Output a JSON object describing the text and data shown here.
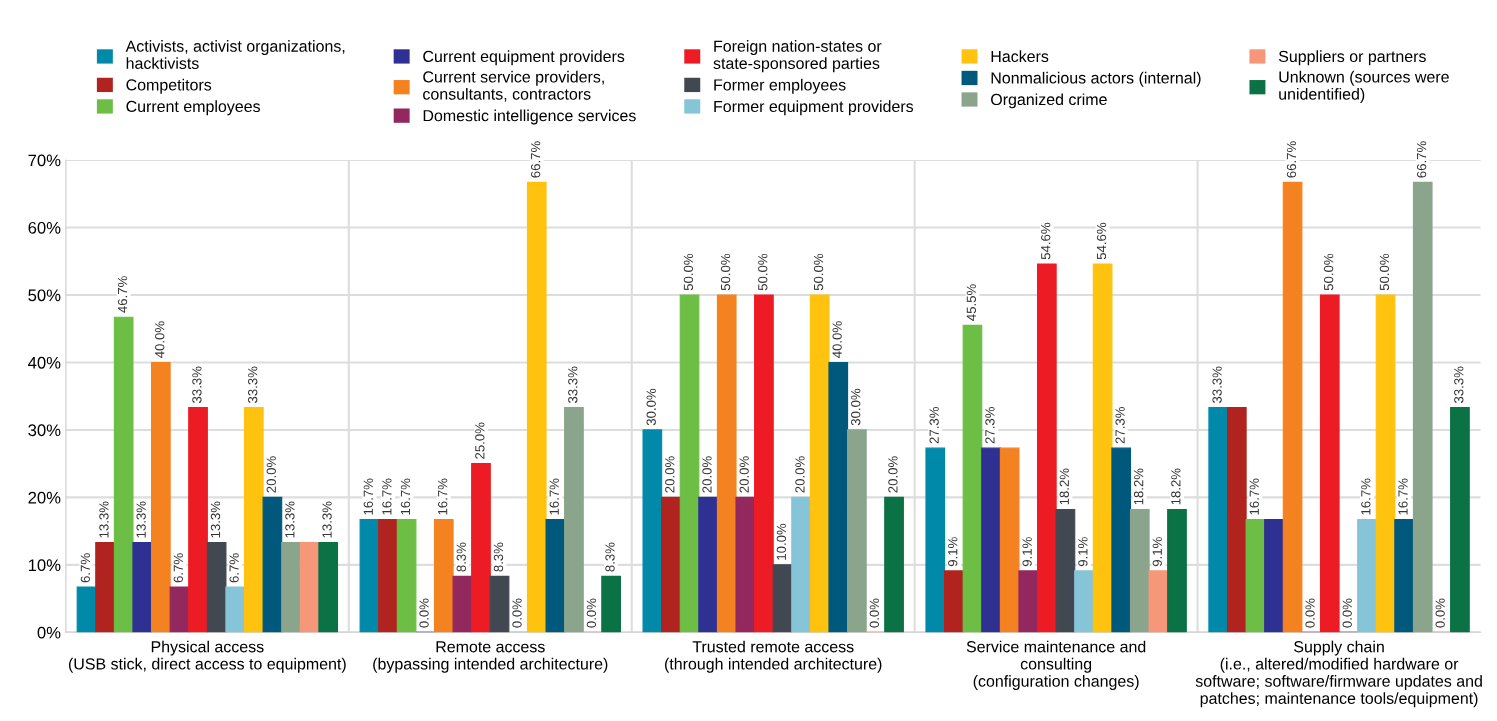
{
  "chart_data": {
    "type": "bar",
    "categories": [
      "Physical access\n(USB stick, direct access to equipment)",
      "Remote access\n(bypassing intended architecture)",
      "Trusted remote access\n(through intended architecture)",
      "Service maintenance and\nconsulting\n(configuration changes)",
      "Supply chain\n(i.e., altered/modified hardware or\nsoftware; software/firmware updates and\npatches; maintenance tools/equipment)"
    ],
    "series": [
      {
        "name": "Activists, activist organizations,\nhacktivists",
        "color": "#0089a8",
        "values": [
          6.7,
          16.7,
          30.0,
          27.3,
          33.3
        ],
        "value_labels": [
          "6.7%",
          "16.7%",
          "30.0%",
          "27.3%",
          "33.3%"
        ]
      },
      {
        "name": "Competitors",
        "color": "#b0231e",
        "values": [
          13.3,
          16.7,
          20.0,
          9.1,
          33.3
        ],
        "value_labels": [
          "13.3%",
          "16.7%",
          "20.0%",
          "9.1%",
          null
        ]
      },
      {
        "name": "Current employees",
        "color": "#6dbe45",
        "values": [
          46.7,
          16.7,
          50.0,
          45.5,
          16.7
        ],
        "value_labels": [
          "46.7%",
          "16.7%",
          "50.0%",
          "45.5%",
          "16.7%"
        ]
      },
      {
        "name": "Current equipment providers",
        "color": "#2e3192",
        "values": [
          13.3,
          0.0,
          20.0,
          27.3,
          16.7
        ],
        "value_labels": [
          "13.3%",
          "0.0%",
          "20.0%",
          "27.3%",
          null
        ]
      },
      {
        "name": "Current service providers,\nconsultants, contractors",
        "color": "#f58220",
        "values": [
          40.0,
          16.7,
          50.0,
          27.3,
          66.7
        ],
        "value_labels": [
          "40.0%",
          "16.7%",
          "50.0%",
          null,
          "66.7%"
        ]
      },
      {
        "name": "Domestic intelligence services",
        "color": "#92285e",
        "values": [
          6.7,
          8.3,
          20.0,
          9.1,
          0.0
        ],
        "value_labels": [
          "6.7%",
          "8.3%",
          "20.0%",
          "9.1%",
          "0.0%"
        ]
      },
      {
        "name": "Foreign nation-states or\nstate-sponsored parties",
        "color": "#ed1c24",
        "values": [
          33.3,
          25.0,
          50.0,
          54.6,
          50.0
        ],
        "value_labels": [
          "33.3%",
          "25.0%",
          "50.0%",
          "54.6%",
          "50.0%"
        ]
      },
      {
        "name": "Former employees",
        "color": "#414851",
        "values": [
          13.3,
          8.3,
          10.0,
          18.2,
          0.0
        ],
        "value_labels": [
          "13.3%",
          "8.3%",
          "10.0%",
          "18.2%",
          "0.0%"
        ]
      },
      {
        "name": "Former equipment providers",
        "color": "#86c4d8",
        "values": [
          6.7,
          0.0,
          20.0,
          9.1,
          16.7
        ],
        "value_labels": [
          "6.7%",
          "0.0%",
          "20.0%",
          "9.1%",
          "16.7%"
        ]
      },
      {
        "name": "Hackers",
        "color": "#ffc20e",
        "values": [
          33.3,
          66.7,
          50.0,
          54.6,
          50.0
        ],
        "value_labels": [
          "33.3%",
          "66.7%",
          "50.0%",
          "54.6%",
          "50.0%"
        ]
      },
      {
        "name": "Nonmalicious actors (internal)",
        "color": "#00587c",
        "values": [
          20.0,
          16.7,
          40.0,
          27.3,
          16.7
        ],
        "value_labels": [
          "20.0%",
          "16.7%",
          "40.0%",
          "27.3%",
          "16.7%"
        ]
      },
      {
        "name": "Organized crime",
        "color": "#8aa58c",
        "values": [
          13.3,
          33.3,
          30.0,
          18.2,
          66.7
        ],
        "value_labels": [
          "13.3%",
          "33.3%",
          "30.0%",
          "18.2%",
          "66.7%"
        ]
      },
      {
        "name": "Suppliers or partners",
        "color": "#f7977a",
        "values": [
          13.3,
          0.0,
          0.0,
          9.1,
          0.0
        ],
        "value_labels": [
          null,
          "0.0%",
          "0.0%",
          "9.1%",
          "0.0%"
        ]
      },
      {
        "name": "Unknown (sources were\nunidentified)",
        "color": "#0a7245",
        "values": [
          13.3,
          8.3,
          20.0,
          18.2,
          33.3
        ],
        "value_labels": [
          "13.3%",
          "8.3%",
          "20.0%",
          "18.2%",
          "33.3%"
        ]
      }
    ],
    "ylim": [
      0,
      70
    ],
    "yticks": [
      {
        "value": 0,
        "label": "0%"
      },
      {
        "value": 10,
        "label": "10%"
      },
      {
        "value": 20,
        "label": "20%"
      },
      {
        "value": 30,
        "label": "30%"
      },
      {
        "value": 40,
        "label": "40%"
      },
      {
        "value": 50,
        "label": "50%"
      },
      {
        "value": 60,
        "label": "60%"
      },
      {
        "value": 70,
        "label": "70%"
      }
    ],
    "grid": true,
    "legend": "top"
  }
}
